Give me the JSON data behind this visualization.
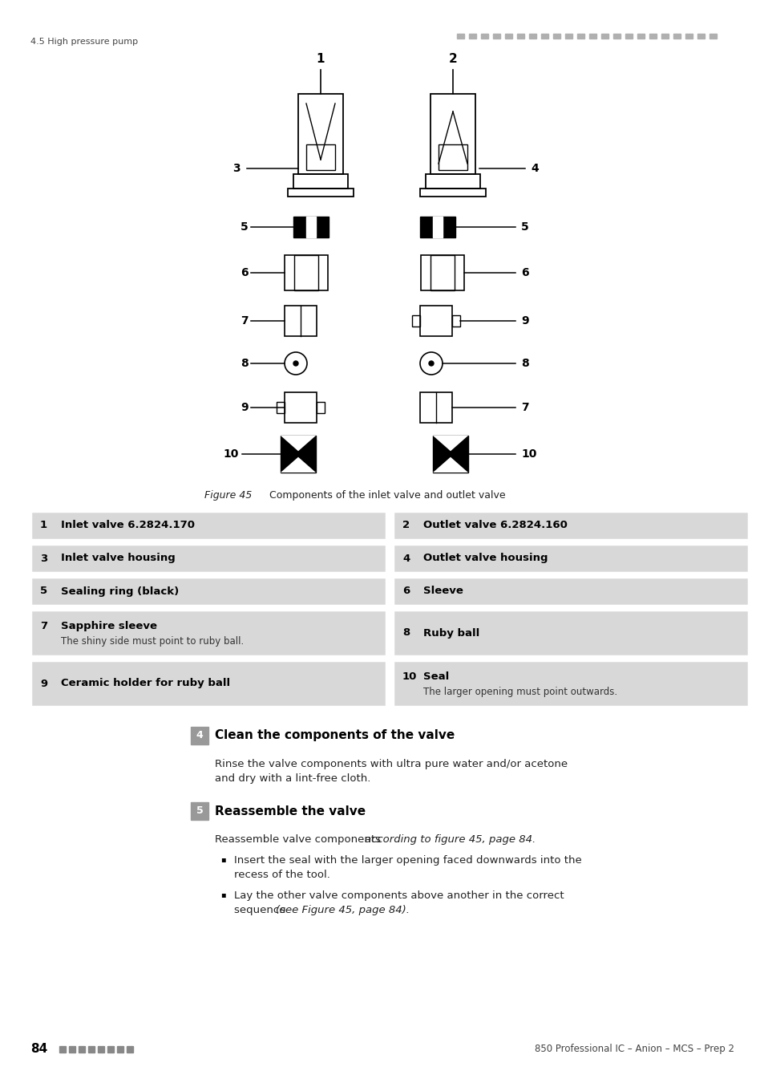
{
  "page_bg": "#ffffff",
  "header_left": "4.5 High pressure pump",
  "figure_caption_italic": "Figure 45",
  "figure_caption_normal": "    Components of the inlet valve and outlet valve",
  "table_rows": [
    {
      "left_num": "1",
      "left_bold": "Inlet valve 6.2824.170",
      "left_sub": "",
      "right_num": "2",
      "right_bold": "Outlet valve 6.2824.160",
      "right_sub": ""
    },
    {
      "left_num": "3",
      "left_bold": "Inlet valve housing",
      "left_sub": "",
      "right_num": "4",
      "right_bold": "Outlet valve housing",
      "right_sub": ""
    },
    {
      "left_num": "5",
      "left_bold": "Sealing ring (black)",
      "left_sub": "",
      "right_num": "6",
      "right_bold": "Sleeve",
      "right_sub": ""
    },
    {
      "left_num": "7",
      "left_bold": "Sapphire sleeve",
      "left_sub": "The shiny side must point to ruby ball.",
      "right_num": "8",
      "right_bold": "Ruby ball",
      "right_sub": ""
    },
    {
      "left_num": "9",
      "left_bold": "Ceramic holder for ruby ball",
      "left_sub": "",
      "right_num": "10",
      "right_bold": "Seal",
      "right_sub": "The larger opening must point outwards."
    }
  ],
  "step4_title": "Clean the components of the valve",
  "step4_text1": "Rinse the valve components with ultra pure water and/or acetone",
  "step4_text2": "and dry with a lint-free cloth.",
  "step5_title": "Reassemble the valve",
  "step5_intro_norm": "Reassemble valve components ",
  "step5_intro_ital": "according to figure 45, page 84.",
  "step5_b1": "Insert the seal with the larger opening faced downwards into the",
  "step5_b1b": "recess of the tool.",
  "step5_b2": "Lay the other valve components above another in the correct",
  "step5_b2b_norm": "sequence ",
  "step5_b2b_ital": "(see Figure 45, page 84).",
  "footer_left_num": "84",
  "footer_right": "850 Professional IC – Anion – MCS – Prep 2",
  "table_bg": "#d8d8d8",
  "step_bg": "#999999"
}
